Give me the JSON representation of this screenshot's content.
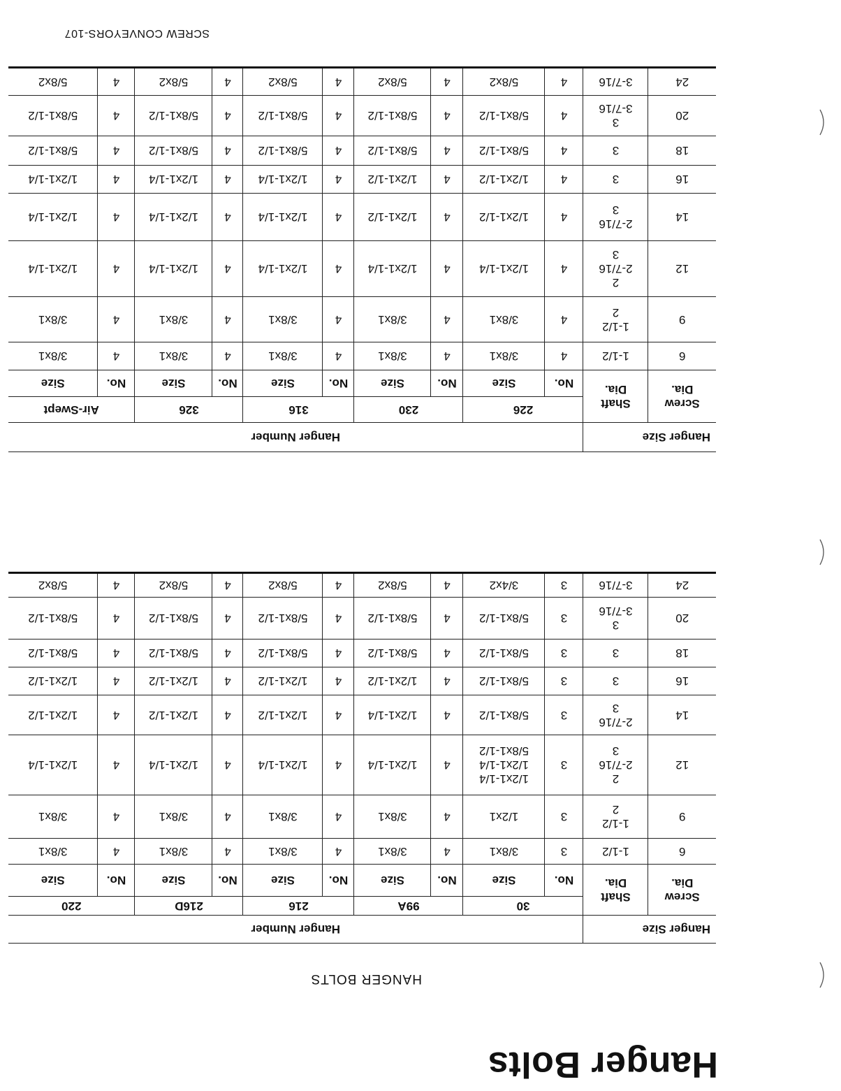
{
  "title": "Hanger Bolts",
  "subtitle": "HANGER BOLTS",
  "footer": "SCREW CONVEYORS-107",
  "headers": {
    "hanger_size": "Hanger Size",
    "hanger_number": "Hanger Number",
    "screw_dia": [
      "Screw",
      "Dia."
    ],
    "shaft_dia": [
      "Shaft",
      "Dia."
    ],
    "no": "No.",
    "size": "Size"
  },
  "tables": [
    {
      "hanger_numbers": [
        "30",
        "99A",
        "216",
        "216D",
        "220"
      ],
      "rows": [
        {
          "screw": "6",
          "shaft": [
            "1-1/2"
          ],
          "cells": [
            {
              "no": "3",
              "size": [
                "3/8x1"
              ]
            },
            {
              "no": "4",
              "size": [
                "3/8x1"
              ]
            },
            {
              "no": "4",
              "size": [
                "3/8x1"
              ]
            },
            {
              "no": "4",
              "size": [
                "3/8x1"
              ]
            },
            {
              "no": "4",
              "size": [
                "3/8x1"
              ]
            }
          ]
        },
        {
          "screw": "9",
          "shaft": [
            "1-1/2",
            "2"
          ],
          "cells": [
            {
              "no": "3",
              "size": [
                "1/2x1"
              ]
            },
            {
              "no": "4",
              "size": [
                "3/8x1"
              ]
            },
            {
              "no": "4",
              "size": [
                "3/8x1"
              ]
            },
            {
              "no": "4",
              "size": [
                "3/8x1"
              ]
            },
            {
              "no": "4",
              "size": [
                "3/8x1"
              ]
            }
          ]
        },
        {
          "screw": "12",
          "shaft": [
            "2",
            "2-7/16",
            "3"
          ],
          "cells": [
            {
              "no": "3",
              "size": [
                "1/2x1-1/4",
                "1/2x1-1/4",
                "5/8x1-1/2"
              ]
            },
            {
              "no": "4",
              "size": [
                "1/2x1-1/4"
              ]
            },
            {
              "no": "4",
              "size": [
                "1/2x1-1/4"
              ]
            },
            {
              "no": "4",
              "size": [
                "1/2x1-1/4"
              ]
            },
            {
              "no": "4",
              "size": [
                "1/2x1-1/4"
              ]
            }
          ]
        },
        {
          "screw": "14",
          "shaft": [
            "2-7/16",
            "3"
          ],
          "cells": [
            {
              "no": "3",
              "size": [
                "5/8x1-1/2"
              ]
            },
            {
              "no": "4",
              "size": [
                "1/2x1-1/4"
              ]
            },
            {
              "no": "4",
              "size": [
                "1/2x1-1/2"
              ]
            },
            {
              "no": "4",
              "size": [
                "1/2x1-1/2"
              ]
            },
            {
              "no": "4",
              "size": [
                "1/2x1-1/2"
              ]
            }
          ]
        },
        {
          "screw": "16",
          "shaft": [
            "3"
          ],
          "cells": [
            {
              "no": "3",
              "size": [
                "5/8x1-1/2"
              ]
            },
            {
              "no": "4",
              "size": [
                "1/2x1-1/2"
              ]
            },
            {
              "no": "4",
              "size": [
                "1/2x1-1/2"
              ]
            },
            {
              "no": "4",
              "size": [
                "1/2x1-1/2"
              ]
            },
            {
              "no": "4",
              "size": [
                "1/2x1-1/2"
              ]
            }
          ]
        },
        {
          "screw": "18",
          "shaft": [
            "3"
          ],
          "cells": [
            {
              "no": "3",
              "size": [
                "5/8x1-1/2"
              ]
            },
            {
              "no": "4",
              "size": [
                "5/8x1-1/2"
              ]
            },
            {
              "no": "4",
              "size": [
                "5/8x1-1/2"
              ]
            },
            {
              "no": "4",
              "size": [
                "5/8x1-1/2"
              ]
            },
            {
              "no": "4",
              "size": [
                "5/8x1-1/2"
              ]
            }
          ]
        },
        {
          "screw": "20",
          "shaft": [
            "3",
            "3-7/16"
          ],
          "cells": [
            {
              "no": "3",
              "size": [
                "5/8x1-1/2"
              ]
            },
            {
              "no": "4",
              "size": [
                "5/8x1-1/2"
              ]
            },
            {
              "no": "4",
              "size": [
                "5/8x1-1/2"
              ]
            },
            {
              "no": "4",
              "size": [
                "5/8x1-1/2"
              ]
            },
            {
              "no": "4",
              "size": [
                "5/8x1-1/2"
              ]
            }
          ]
        },
        {
          "screw": "24",
          "shaft": [
            "3-7/16"
          ],
          "cells": [
            {
              "no": "3",
              "size": [
                "3/4x2"
              ]
            },
            {
              "no": "4",
              "size": [
                "5/8x2"
              ]
            },
            {
              "no": "4",
              "size": [
                "5/8x2"
              ]
            },
            {
              "no": "4",
              "size": [
                "5/8x2"
              ]
            },
            {
              "no": "4",
              "size": [
                "5/8x2"
              ]
            }
          ]
        }
      ]
    },
    {
      "hanger_numbers": [
        "226",
        "230",
        "316",
        "326",
        "Air-Swept"
      ],
      "rows": [
        {
          "screw": "6",
          "shaft": [
            "1-1/2"
          ],
          "cells": [
            {
              "no": "4",
              "size": [
                "3/8x1"
              ]
            },
            {
              "no": "4",
              "size": [
                "3/8x1"
              ]
            },
            {
              "no": "4",
              "size": [
                "3/8x1"
              ]
            },
            {
              "no": "4",
              "size": [
                "3/8x1"
              ]
            },
            {
              "no": "4",
              "size": [
                "3/8x1"
              ]
            }
          ]
        },
        {
          "screw": "9",
          "shaft": [
            "1-1/2",
            "2"
          ],
          "cells": [
            {
              "no": "4",
              "size": [
                "3/8x1"
              ]
            },
            {
              "no": "4",
              "size": [
                "3/8x1"
              ]
            },
            {
              "no": "4",
              "size": [
                "3/8x1"
              ]
            },
            {
              "no": "4",
              "size": [
                "3/8x1"
              ]
            },
            {
              "no": "4",
              "size": [
                "3/8x1"
              ]
            }
          ]
        },
        {
          "screw": "12",
          "shaft": [
            "2",
            "2-7/16",
            "3"
          ],
          "cells": [
            {
              "no": "4",
              "size": [
                "1/2x1-1/4"
              ]
            },
            {
              "no": "4",
              "size": [
                "1/2x1-1/4"
              ]
            },
            {
              "no": "4",
              "size": [
                "1/2x1-1/4"
              ]
            },
            {
              "no": "4",
              "size": [
                "1/2x1-1/4"
              ]
            },
            {
              "no": "4",
              "size": [
                "1/2x1-1/4"
              ]
            }
          ]
        },
        {
          "screw": "14",
          "shaft": [
            "2-7/16",
            "3"
          ],
          "cells": [
            {
              "no": "4",
              "size": [
                "1/2x1-1/2"
              ]
            },
            {
              "no": "4",
              "size": [
                "1/2x1-1/2"
              ]
            },
            {
              "no": "4",
              "size": [
                "1/2x1-1/4"
              ]
            },
            {
              "no": "4",
              "size": [
                "1/2x1-1/4"
              ]
            },
            {
              "no": "4",
              "size": [
                "1/2x1-1/4"
              ]
            }
          ]
        },
        {
          "screw": "16",
          "shaft": [
            "3"
          ],
          "cells": [
            {
              "no": "4",
              "size": [
                "1/2x1-1/2"
              ]
            },
            {
              "no": "4",
              "size": [
                "1/2x1-1/2"
              ]
            },
            {
              "no": "4",
              "size": [
                "1/2x1-1/4"
              ]
            },
            {
              "no": "4",
              "size": [
                "1/2x1-1/4"
              ]
            },
            {
              "no": "4",
              "size": [
                "1/2x1-1/4"
              ]
            }
          ]
        },
        {
          "screw": "18",
          "shaft": [
            "3"
          ],
          "cells": [
            {
              "no": "4",
              "size": [
                "5/8x1-1/2"
              ]
            },
            {
              "no": "4",
              "size": [
                "5/8x1-1/2"
              ]
            },
            {
              "no": "4",
              "size": [
                "5/8x1-1/2"
              ]
            },
            {
              "no": "4",
              "size": [
                "5/8x1-1/2"
              ]
            },
            {
              "no": "4",
              "size": [
                "5/8x1-1/2"
              ]
            }
          ]
        },
        {
          "screw": "20",
          "shaft": [
            "3",
            "3-7/16"
          ],
          "cells": [
            {
              "no": "4",
              "size": [
                "5/8x1-1/2"
              ]
            },
            {
              "no": "4",
              "size": [
                "5/8x1-1/2"
              ]
            },
            {
              "no": "4",
              "size": [
                "5/8x1-1/2"
              ]
            },
            {
              "no": "4",
              "size": [
                "5/8x1-1/2"
              ]
            },
            {
              "no": "4",
              "size": [
                "5/8x1-1/2"
              ]
            }
          ]
        },
        {
          "screw": "24",
          "shaft": [
            "3-7/16"
          ],
          "cells": [
            {
              "no": "4",
              "size": [
                "5/8x2"
              ]
            },
            {
              "no": "4",
              "size": [
                "5/8x2"
              ]
            },
            {
              "no": "4",
              "size": [
                "5/8x2"
              ]
            },
            {
              "no": "4",
              "size": [
                "5/8x2"
              ]
            },
            {
              "no": "4",
              "size": [
                "5/8x2"
              ]
            }
          ]
        }
      ]
    }
  ]
}
